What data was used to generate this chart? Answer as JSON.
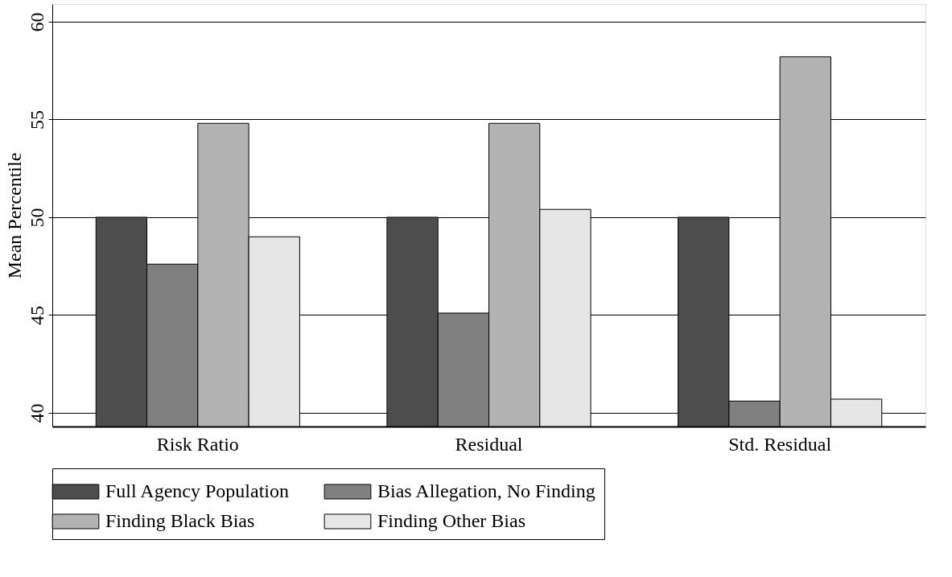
{
  "chart_data": {
    "type": "bar",
    "ylabel": "Mean Percentile",
    "categories": [
      "Risk Ratio",
      "Residual",
      "Std. Residual"
    ],
    "series": [
      {
        "name": "Full Agency Population",
        "color": "#4d4d4d",
        "values": [
          50.0,
          50.0,
          50.0
        ]
      },
      {
        "name": "Bias Allegation, No Finding",
        "color": "#808080",
        "values": [
          47.6,
          45.1,
          40.6
        ]
      },
      {
        "name": "Finding Black Bias",
        "color": "#b3b3b3",
        "values": [
          54.8,
          54.8,
          58.2
        ]
      },
      {
        "name": "Finding Other Bias",
        "color": "#e6e6e6",
        "values": [
          49.0,
          50.4,
          40.7
        ]
      }
    ],
    "ylim": [
      39.3,
      60.9
    ],
    "yticks": [
      40,
      45,
      50,
      55,
      60
    ],
    "grid": "y",
    "legend": "bottom"
  }
}
